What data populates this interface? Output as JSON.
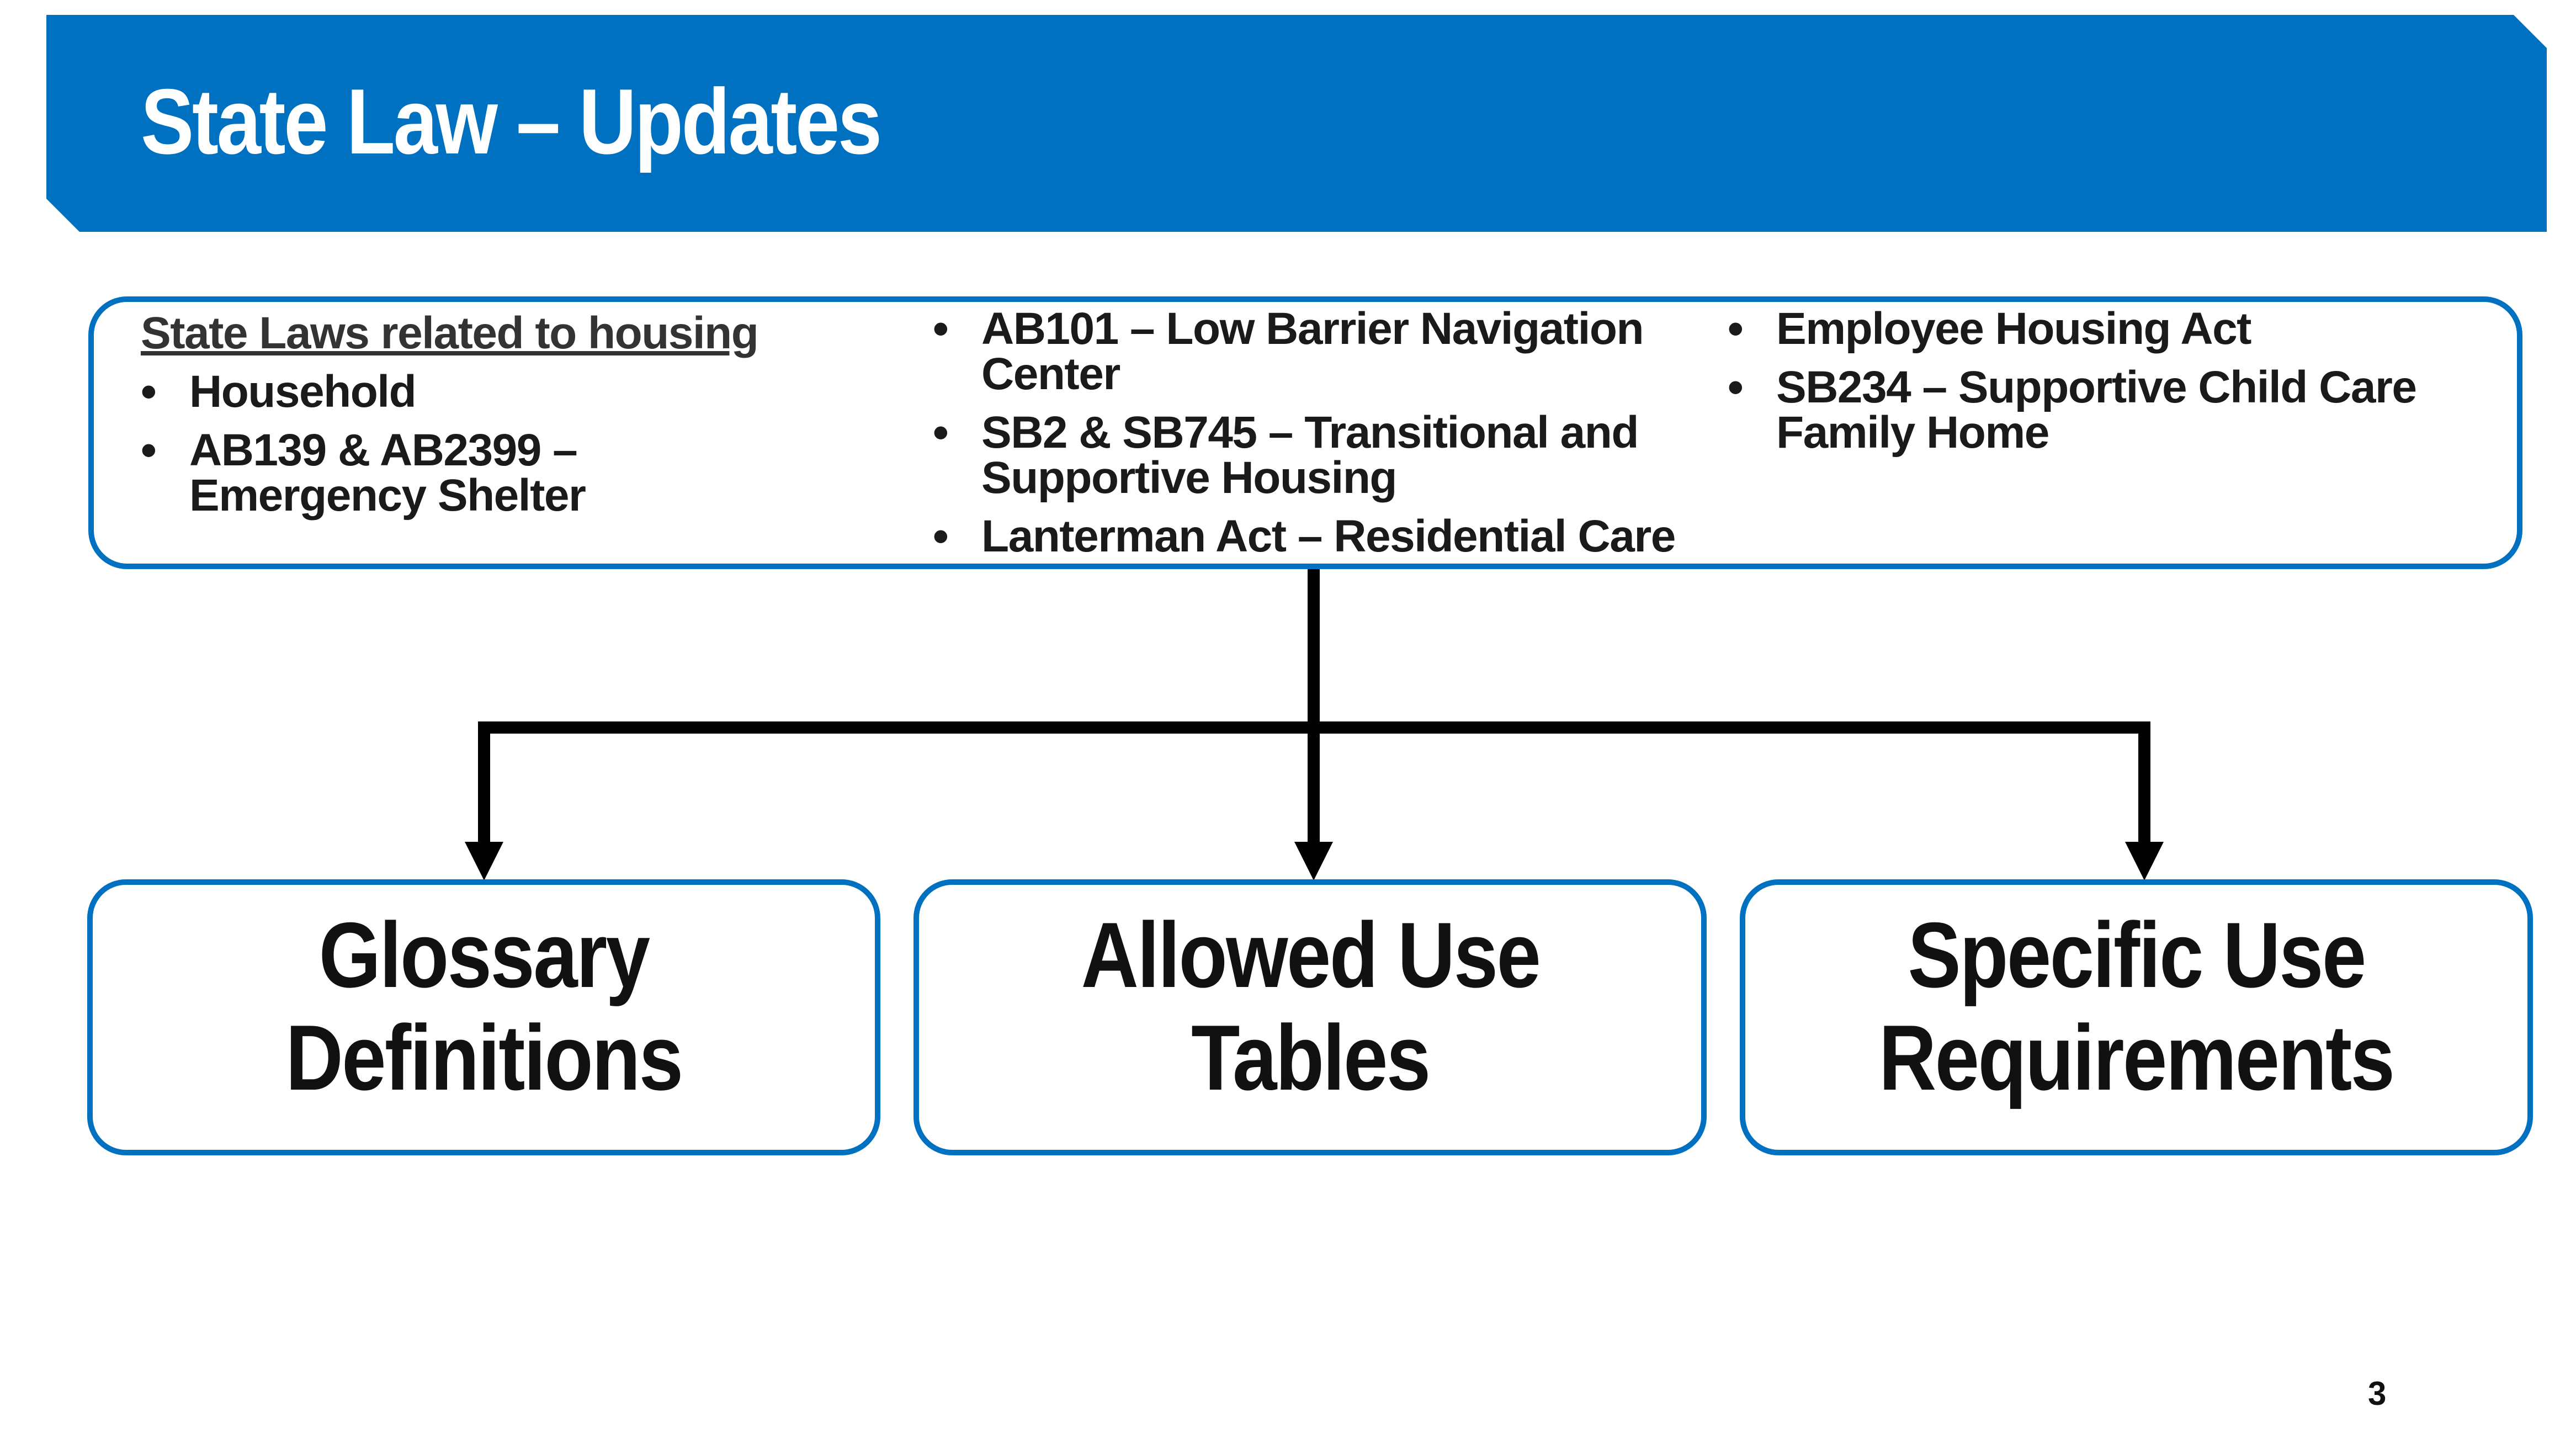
{
  "title": "State Law – Updates",
  "colors": {
    "banner": "#0070C0",
    "box_border": "#0070C0",
    "connector": "#000000"
  },
  "laws": {
    "heading": "State Laws related to housing",
    "column1": [
      "Household",
      "AB139 & AB2399 – Emergency Shelter"
    ],
    "column2": [
      "AB101 – Low Barrier Navigation Center",
      "SB2 & SB745 – Transitional and Supportive Housing",
      "Lanterman Act – Residential Care"
    ],
    "column3": [
      "Employee Housing Act",
      "SB234 – Supportive Child Care Family Home"
    ]
  },
  "categories": [
    {
      "line1": "Glossary",
      "line2": "Definitions"
    },
    {
      "line1": "Allowed Use",
      "line2": "Tables"
    },
    {
      "line1": "Specific Use",
      "line2": "Requirements"
    }
  ],
  "page_number": "3"
}
